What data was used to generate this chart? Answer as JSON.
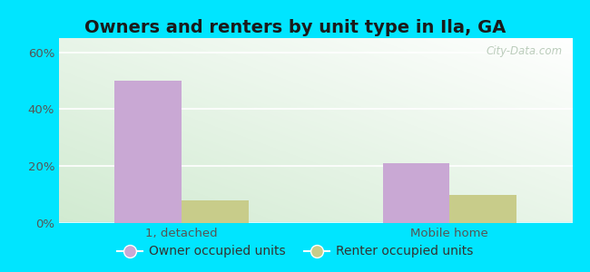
{
  "title": "Owners and renters by unit type in Ila, GA",
  "categories": [
    "1, detached",
    "Mobile home"
  ],
  "owner_values": [
    50,
    21
  ],
  "renter_values": [
    8,
    10
  ],
  "owner_color": "#c9a8d4",
  "renter_color": "#c8cc8a",
  "bar_width": 0.3,
  "ylim": [
    0,
    65
  ],
  "yticks": [
    0,
    20,
    40,
    60
  ],
  "ytick_labels": [
    "0%",
    "20%",
    "40%",
    "60%"
  ],
  "bg_top_left": "#d6edd6",
  "bg_top_right": "#f0f8f0",
  "bg_bottom_left": "#c8e8c8",
  "bg_bottom_right": "#ffffff",
  "outer_bg": "#00e5ff",
  "title_fontsize": 14,
  "tick_fontsize": 9.5,
  "legend_fontsize": 10,
  "watermark": "City-Data.com",
  "group_positions": [
    0.55,
    1.75
  ]
}
